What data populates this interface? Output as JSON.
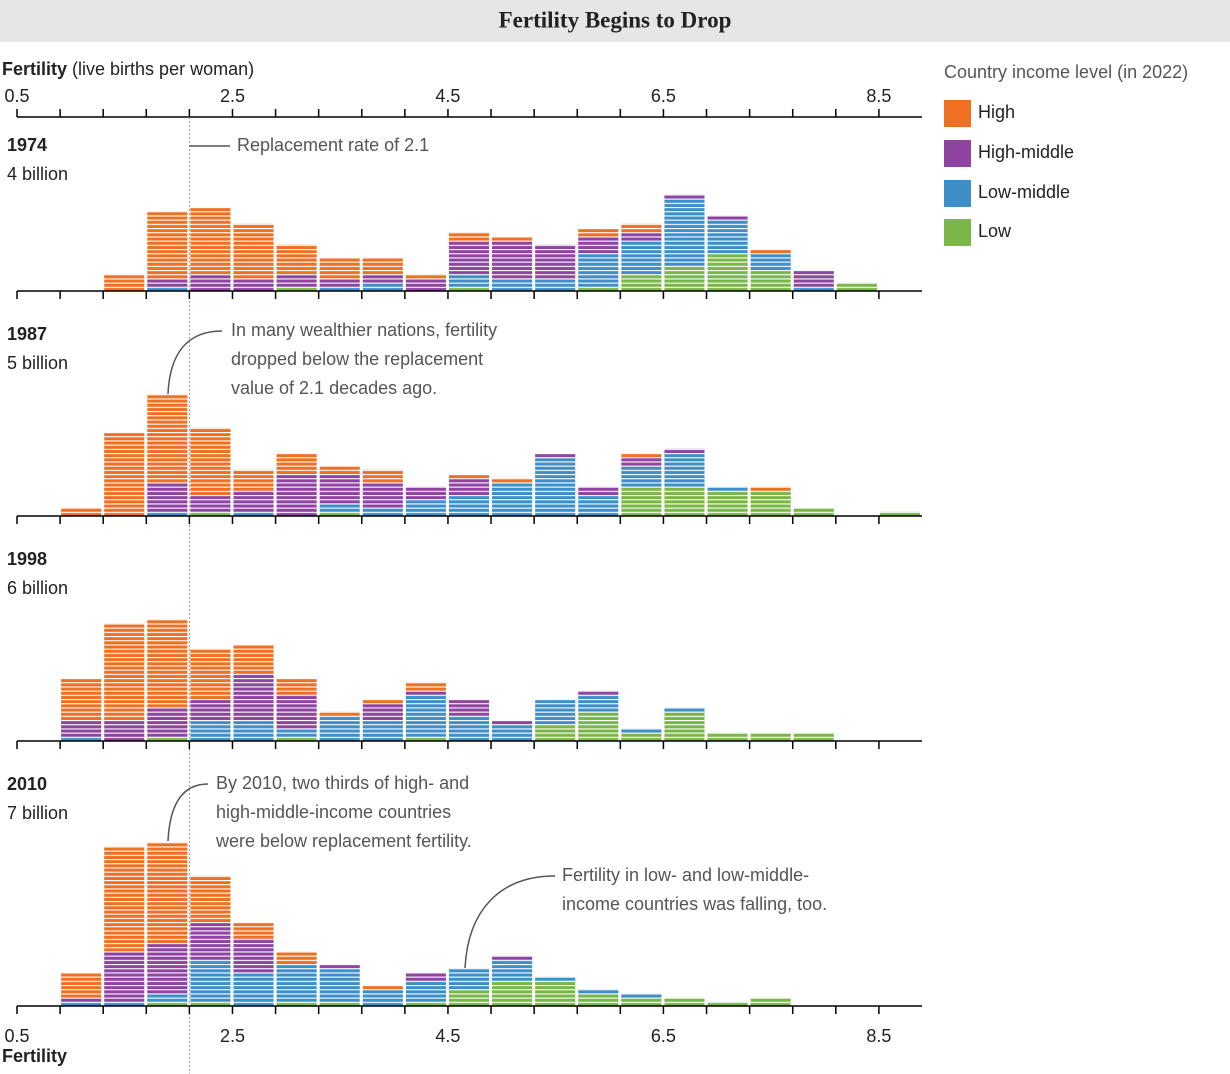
{
  "title": "Fertility Begins to Drop",
  "axis": {
    "label": "Fertility",
    "label_detail": "(live births per woman)",
    "xlim": [
      0.5,
      8.9
    ],
    "xticks": [
      0.5,
      2.5,
      4.5,
      6.5,
      8.5
    ]
  },
  "replacement": {
    "value": 2.1,
    "label": "Replacement rate of 2.1"
  },
  "legend": {
    "title": "Country income level (in 2022)",
    "items": [
      {
        "name": "High",
        "color": "#f07023"
      },
      {
        "name": "High-middle",
        "color": "#8e44a0"
      },
      {
        "name": "Low-middle",
        "color": "#3e8fc9"
      },
      {
        "name": "Low",
        "color": "#7ab648"
      }
    ]
  },
  "chart_data": [
    {
      "type": "histogram",
      "title": "1974",
      "subtitle": "4 billion",
      "bins": [
        0.5,
        0.9,
        1.3,
        1.7,
        2.1,
        2.5,
        2.9,
        3.3,
        3.7,
        4.1,
        4.5,
        4.9,
        5.3,
        5.7,
        6.1,
        6.5,
        6.9,
        7.3,
        7.7,
        8.1,
        8.5,
        8.9
      ],
      "series": [
        {
          "values": [
            0,
            0,
            4,
            16,
            16,
            13,
            7,
            5,
            4,
            1,
            2,
            1,
            0,
            2,
            2,
            0,
            0,
            1,
            0,
            0,
            0
          ]
        },
        {
          "values": [
            0,
            0,
            0,
            2,
            4,
            3,
            3,
            2,
            2,
            3,
            8,
            9,
            8,
            4,
            2,
            1,
            1,
            0,
            4,
            0,
            0
          ]
        },
        {
          "values": [
            0,
            0,
            0,
            1,
            0,
            0,
            0,
            1,
            2,
            0,
            3,
            3,
            3,
            8,
            8,
            16,
            8,
            4,
            1,
            0,
            0
          ]
        },
        {
          "values": [
            0,
            0,
            0,
            0,
            0,
            0,
            1,
            0,
            0,
            0,
            1,
            0,
            0,
            1,
            4,
            6,
            9,
            5,
            0,
            2,
            0
          ]
        }
      ],
      "annotations": []
    },
    {
      "type": "histogram",
      "title": "1987",
      "subtitle": "5 billion",
      "bins": [
        0.5,
        0.9,
        1.3,
        1.7,
        2.1,
        2.5,
        2.9,
        3.3,
        3.7,
        4.1,
        4.5,
        4.9,
        5.3,
        5.7,
        6.1,
        6.5,
        6.9,
        7.3,
        7.7,
        8.1,
        8.5,
        8.9
      ],
      "series": [
        {
          "values": [
            0,
            2,
            20,
            21,
            16,
            5,
            5,
            2,
            3,
            0,
            1,
            1,
            0,
            0,
            1,
            0,
            0,
            1,
            0,
            0,
            0
          ]
        },
        {
          "values": [
            0,
            0,
            0,
            7,
            4,
            5,
            10,
            7,
            6,
            3,
            4,
            0,
            1,
            2,
            2,
            1,
            0,
            0,
            0,
            0,
            0
          ]
        },
        {
          "values": [
            0,
            0,
            0,
            1,
            0,
            1,
            0,
            2,
            2,
            4,
            5,
            8,
            14,
            5,
            5,
            8,
            1,
            0,
            0,
            0,
            0
          ]
        },
        {
          "values": [
            0,
            0,
            0,
            0,
            1,
            0,
            0,
            1,
            0,
            0,
            0,
            0,
            0,
            0,
            7,
            7,
            6,
            6,
            2,
            0,
            1
          ]
        }
      ],
      "annotations": [
        {
          "lines": [
            "In many wealthier nations, fertility",
            "dropped below the replacement",
            "value of 2.1 decades ago."
          ]
        }
      ]
    },
    {
      "type": "histogram",
      "title": "1998",
      "subtitle": "6 billion",
      "bins": [
        0.5,
        0.9,
        1.3,
        1.7,
        2.1,
        2.5,
        2.9,
        3.3,
        3.7,
        4.1,
        4.5,
        4.9,
        5.3,
        5.7,
        6.1,
        6.5,
        6.9,
        7.3,
        7.7,
        8.1,
        8.5,
        8.9
      ],
      "series": [
        {
          "values": [
            0,
            10,
            23,
            21,
            12,
            7,
            4,
            1,
            1,
            2,
            0,
            0,
            0,
            0,
            0,
            0,
            0,
            0,
            0,
            0,
            0
          ]
        },
        {
          "values": [
            0,
            4,
            5,
            7,
            5,
            11,
            8,
            0,
            4,
            1,
            4,
            1,
            0,
            1,
            0,
            0,
            0,
            0,
            0,
            0,
            0
          ]
        },
        {
          "values": [
            0,
            1,
            0,
            0,
            5,
            5,
            2,
            6,
            5,
            10,
            6,
            4,
            6,
            4,
            1,
            1,
            0,
            0,
            0,
            0,
            0
          ]
        },
        {
          "values": [
            0,
            0,
            0,
            1,
            0,
            0,
            1,
            0,
            0,
            1,
            0,
            0,
            4,
            7,
            2,
            7,
            2,
            2,
            2,
            0,
            0
          ]
        }
      ],
      "annotations": []
    },
    {
      "type": "histogram",
      "title": "2010",
      "subtitle": "7 billion",
      "bins": [
        0.5,
        0.9,
        1.3,
        1.7,
        2.1,
        2.5,
        2.9,
        3.3,
        3.7,
        4.1,
        4.5,
        4.9,
        5.3,
        5.7,
        6.1,
        6.5,
        6.9,
        7.3,
        7.7,
        8.1,
        8.5,
        8.9
      ],
      "series": [
        {
          "values": [
            0,
            6,
            25,
            24,
            11,
            4,
            3,
            0,
            1,
            0,
            0,
            0,
            0,
            0,
            0,
            0,
            0,
            0,
            0,
            0,
            0
          ]
        },
        {
          "values": [
            0,
            1,
            12,
            12,
            9,
            8,
            0,
            1,
            0,
            2,
            0,
            1,
            0,
            0,
            0,
            0,
            0,
            0,
            0,
            0,
            0
          ]
        },
        {
          "values": [
            0,
            1,
            1,
            2,
            10,
            8,
            9,
            8,
            4,
            5,
            5,
            5,
            1,
            1,
            1,
            0,
            0,
            0,
            0,
            0,
            0
          ]
        },
        {
          "values": [
            0,
            0,
            0,
            1,
            1,
            0,
            1,
            1,
            0,
            1,
            4,
            6,
            6,
            3,
            2,
            2,
            1,
            2,
            0,
            0,
            0
          ]
        }
      ],
      "annotations": [
        {
          "lines": [
            "By 2010, two thirds of high- and",
            "high-middle-income countries",
            "were below replacement fertility."
          ]
        },
        {
          "lines": [
            "Fertility in low- and low-middle-",
            "income countries was falling, too."
          ]
        }
      ]
    }
  ]
}
